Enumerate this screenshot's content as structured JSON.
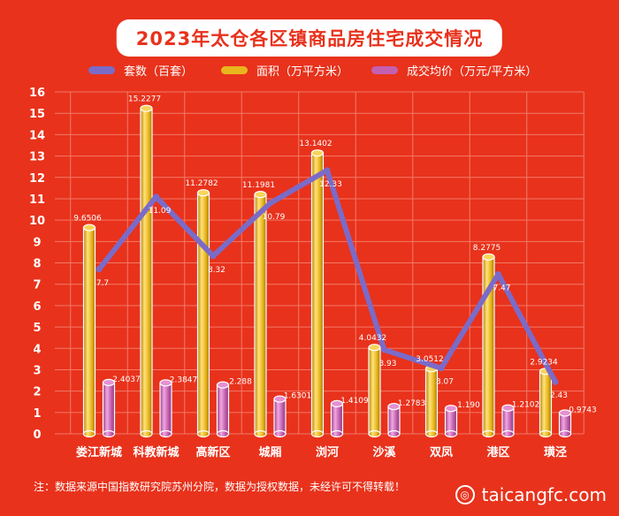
{
  "chart_data": {
    "type": "bar",
    "title": "2023年太仓各区镇商品房住宅成交情况",
    "categories": [
      "娄江新城",
      "科教新城",
      "高新区",
      "城厢",
      "浏河",
      "沙溪",
      "双凤",
      "港区",
      "璜泾"
    ],
    "series": [
      {
        "name": "套数（百套）",
        "render": "line",
        "color": "#7b6bc8",
        "values": [
          7.7,
          11.09,
          8.32,
          10.79,
          12.33,
          3.93,
          3.07,
          7.47,
          2.43
        ],
        "labels": [
          "7.7",
          "11.09",
          "8.32",
          "10.79",
          "12.33",
          "3.93",
          "3.07",
          "7.47",
          "2.43"
        ]
      },
      {
        "name": "面积（万平方米）",
        "render": "bar",
        "color": "#e8b61c",
        "values": [
          9.6506,
          15.2277,
          11.2782,
          11.1981,
          13.1402,
          4.0432,
          3.0512,
          8.2775,
          2.9234
        ],
        "labels": [
          "9.6506",
          "15.2277",
          "11.2782",
          "11.1981",
          "13.1402",
          "4.0432",
          "3.0512",
          "8.2775",
          "2.9234"
        ]
      },
      {
        "name": "成交均价（万元/平方米）",
        "render": "bar",
        "color": "#c460b0",
        "values": [
          2.4037,
          2.3847,
          2.288,
          1.6301,
          1.4109,
          1.2783,
          1.19,
          1.2102,
          0.9743
        ],
        "labels": [
          "2.4037",
          "2.3847",
          "2.288",
          "1.6301",
          "1.4109",
          "1.2783",
          "1.190",
          "1.2102",
          "0.9743"
        ]
      }
    ],
    "yticks": [
      "0",
      "1",
      "2",
      "3",
      "4",
      "5",
      "6",
      "7",
      "8",
      "9",
      "10",
      "11",
      "12",
      "13",
      "14",
      "15",
      "16"
    ],
    "ylim": [
      0,
      16
    ],
    "grid": true,
    "legend_position": "top"
  },
  "note": "注：数据来源中国指数研究院苏州分院，数据为授权数据，未经许可不得转载！",
  "watermark": "taicangfc.com"
}
